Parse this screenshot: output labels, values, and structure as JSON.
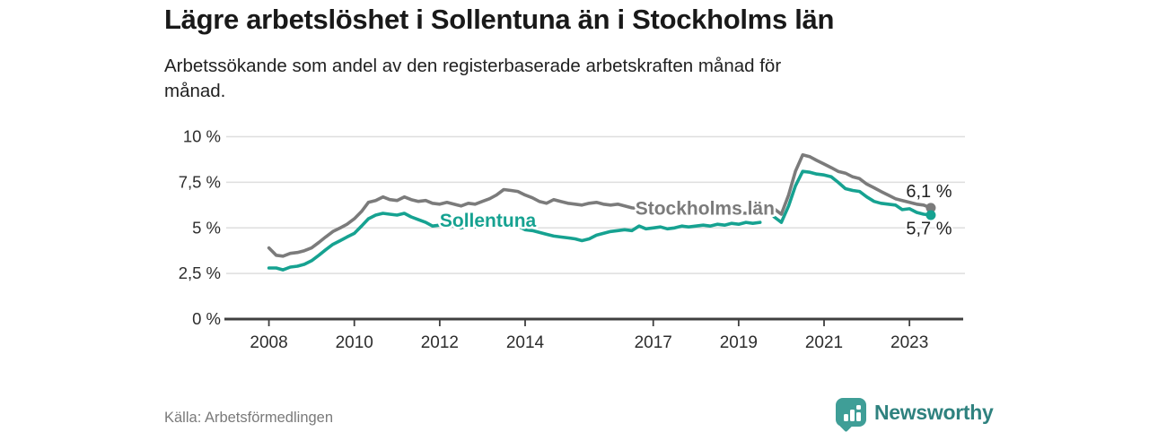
{
  "chart_data": {
    "type": "line",
    "title": "Lägre arbetslöshet i Sollentuna än i Stockholms län",
    "subtitle_lines": [
      "Arbetssökande som andel av den registerbaserade arbetskraften månad för",
      "månad."
    ],
    "xlabel": "",
    "ylabel": "",
    "grid": true,
    "legend_position": "inline-labels-on-lines",
    "xlim": [
      2007,
      2024.3
    ],
    "ylim": [
      0,
      10
    ],
    "x_ticks": [
      {
        "v": 2008,
        "label": "2008"
      },
      {
        "v": 2010,
        "label": "2010"
      },
      {
        "v": 2012,
        "label": "2012"
      },
      {
        "v": 2014,
        "label": "2014"
      },
      {
        "v": 2017,
        "label": "2017"
      },
      {
        "v": 2019,
        "label": "2019"
      },
      {
        "v": 2021,
        "label": "2021"
      },
      {
        "v": 2023,
        "label": "2023"
      }
    ],
    "y_ticks": [
      {
        "v": 0,
        "label": "0 %"
      },
      {
        "v": 2.5,
        "label": "2,5 %"
      },
      {
        "v": 5,
        "label": "5 %"
      },
      {
        "v": 7.5,
        "label": "7,5 %"
      },
      {
        "v": 10,
        "label": "10 %"
      }
    ],
    "x": [
      2008,
      2008.17,
      2008.33,
      2008.5,
      2008.67,
      2008.83,
      2009,
      2009.17,
      2009.33,
      2009.5,
      2009.67,
      2009.83,
      2010,
      2010.17,
      2010.33,
      2010.5,
      2010.67,
      2010.83,
      2011,
      2011.17,
      2011.33,
      2011.5,
      2011.67,
      2011.83,
      2012,
      2012.17,
      2012.33,
      2012.5,
      2012.67,
      2012.83,
      2013,
      2013.17,
      2013.33,
      2013.5,
      2013.67,
      2013.83,
      2014,
      2014.17,
      2014.33,
      2014.5,
      2014.67,
      2014.83,
      2015,
      2015.17,
      2015.33,
      2015.5,
      2015.67,
      2015.83,
      2016,
      2016.17,
      2016.33,
      2016.5,
      2016.67,
      2016.83,
      2017,
      2017.17,
      2017.33,
      2017.5,
      2017.67,
      2017.83,
      2018,
      2018.17,
      2018.33,
      2018.5,
      2018.67,
      2018.83,
      2019,
      2019.17,
      2019.33,
      2019.5,
      2019.67,
      2019.83,
      2020,
      2020.17,
      2020.33,
      2020.5,
      2020.67,
      2020.83,
      2021,
      2021.17,
      2021.33,
      2021.5,
      2021.67,
      2021.83,
      2022,
      2022.17,
      2022.33,
      2022.5,
      2022.67,
      2022.83,
      2023,
      2023.17,
      2023.33,
      2023.5
    ],
    "series": [
      {
        "name": "Stockholms län",
        "color": "#7b7b7b",
        "end_label": "6,1 %",
        "end_label_side": "above",
        "inline_label": {
          "text": "Stockholms län",
          "x": 2016.58,
          "y": 6.08
        },
        "values": [
          3.9,
          3.5,
          3.45,
          3.6,
          3.65,
          3.75,
          3.9,
          4.2,
          4.5,
          4.8,
          5.0,
          5.2,
          5.5,
          5.9,
          6.4,
          6.5,
          6.7,
          6.55,
          6.5,
          6.7,
          6.55,
          6.45,
          6.5,
          6.35,
          6.3,
          6.4,
          6.3,
          6.2,
          6.35,
          6.3,
          6.45,
          6.6,
          6.8,
          7.1,
          7.05,
          7.0,
          6.8,
          6.65,
          6.45,
          6.35,
          6.55,
          6.45,
          6.35,
          6.3,
          6.25,
          6.35,
          6.4,
          6.3,
          6.25,
          6.3,
          6.2,
          6.1,
          6.05,
          6.1,
          6.15,
          6.1,
          6.05,
          6.0,
          6.0,
          5.95,
          5.95,
          5.9,
          5.85,
          5.9,
          5.85,
          5.8,
          5.85,
          5.8,
          5.75,
          5.8,
          null,
          6.05,
          5.75,
          6.8,
          8.1,
          9.0,
          8.9,
          8.7,
          8.5,
          8.3,
          8.1,
          8.0,
          7.8,
          7.7,
          7.4,
          7.2,
          7.0,
          6.8,
          6.6,
          6.5,
          6.4,
          6.3,
          6.25,
          6.1
        ]
      },
      {
        "name": "Sollentuna",
        "color": "#16a291",
        "end_label": "5,7 %",
        "end_label_side": "below",
        "inline_label": {
          "text": "Sollentuna",
          "x": 2012.0,
          "y": 5.4
        },
        "values": [
          2.8,
          2.8,
          2.7,
          2.85,
          2.9,
          3.0,
          3.2,
          3.5,
          3.8,
          4.1,
          4.3,
          4.5,
          4.7,
          5.1,
          5.5,
          5.7,
          5.8,
          5.75,
          5.7,
          5.8,
          5.6,
          5.45,
          5.3,
          5.1,
          5.15,
          5.2,
          5.1,
          5.0,
          5.1,
          5.05,
          5.2,
          5.25,
          5.2,
          5.25,
          5.15,
          5.1,
          4.9,
          4.85,
          4.75,
          4.65,
          4.55,
          4.5,
          4.45,
          4.4,
          4.3,
          4.4,
          4.6,
          4.7,
          4.8,
          4.85,
          4.9,
          4.85,
          5.1,
          4.95,
          5.0,
          5.05,
          4.95,
          5.0,
          5.1,
          5.05,
          5.1,
          5.15,
          5.1,
          5.2,
          5.15,
          5.25,
          5.2,
          5.3,
          5.25,
          5.3,
          null,
          5.6,
          5.3,
          6.2,
          7.3,
          8.1,
          8.05,
          7.95,
          7.9,
          7.8,
          7.5,
          7.15,
          7.05,
          7.0,
          6.7,
          6.45,
          6.35,
          6.3,
          6.25,
          6.0,
          6.05,
          5.85,
          5.75,
          5.7
        ]
      }
    ]
  },
  "footer": {
    "source": "Källa: Arbetsförmedlingen",
    "brand": "Newsworthy"
  },
  "colors": {
    "sollentuna": "#16a291",
    "stockholm": "#7b7b7b",
    "grid": "#dedede",
    "axis": "#3f3f3f",
    "tick_text": "#2d2d2d",
    "value_label_text": "#222222",
    "logo_icon": "#3f9e97",
    "logo_text": "#2f827f"
  }
}
